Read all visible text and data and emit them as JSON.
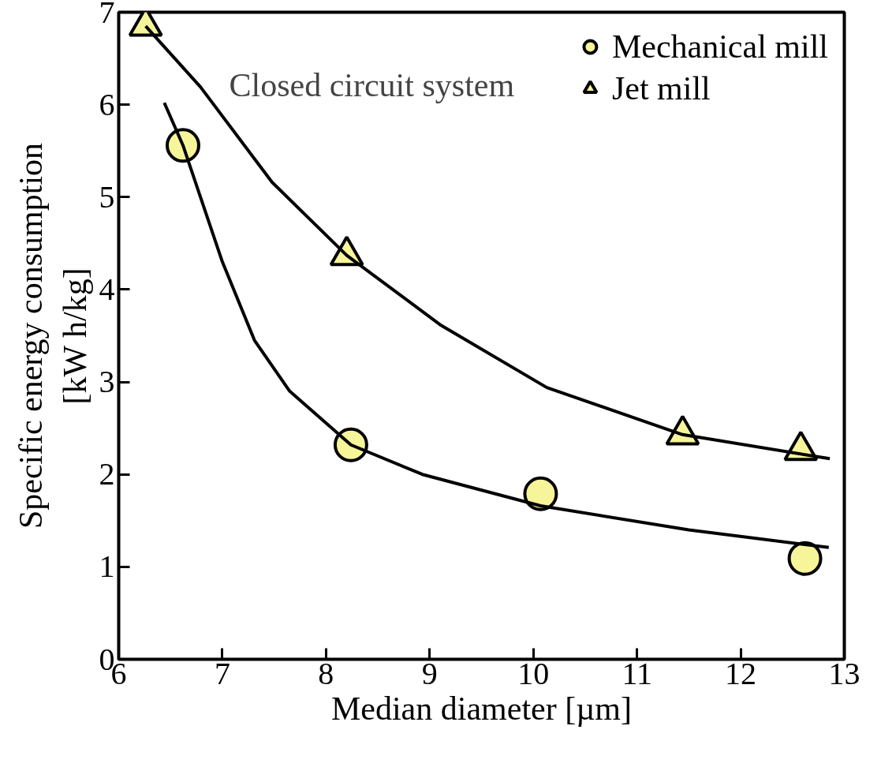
{
  "chart_data": {
    "type": "scatter",
    "xlabel": "Median diameter [µm]",
    "ylabel": "Specific energy consumption\n[kW h/kg]",
    "annotations": [
      "Closed circuit system"
    ],
    "xlim": [
      6,
      13
    ],
    "ylim": [
      0,
      7
    ],
    "xticks": [
      6,
      7,
      8,
      9,
      10,
      11,
      12,
      13
    ],
    "yticks": [
      0,
      1,
      2,
      3,
      4,
      5,
      6,
      7
    ],
    "grid": false,
    "legend": "top right",
    "series": [
      {
        "name": "Mechanical mill",
        "marker": "circle",
        "color": "#f7f59a",
        "x": [
          6.62,
          8.24,
          10.07,
          12.62
        ],
        "values": [
          5.56,
          2.32,
          1.79,
          1.09
        ]
      },
      {
        "name": "Jet mill",
        "marker": "triangle",
        "color": "#f7f59a",
        "x": [
          6.26,
          8.2,
          11.44,
          12.58
        ],
        "values": [
          6.85,
          4.37,
          2.43,
          2.26
        ]
      },
      {
        "type": "line",
        "color": "#000000",
        "x": [
          6.44,
          6.62,
          7.0,
          7.31,
          7.65,
          8.24,
          8.93,
          10.07,
          11.5,
          12.85
        ],
        "values": [
          6.02,
          5.56,
          4.3,
          3.45,
          2.9,
          2.32,
          2.0,
          1.66,
          1.4,
          1.21
        ]
      },
      {
        "type": "line",
        "color": "#000000",
        "x": [
          6.26,
          6.79,
          7.48,
          8.2,
          9.1,
          10.13,
          11.44,
          12.86
        ],
        "values": [
          6.85,
          6.19,
          5.16,
          4.37,
          3.62,
          2.94,
          2.43,
          2.17
        ]
      }
    ]
  }
}
